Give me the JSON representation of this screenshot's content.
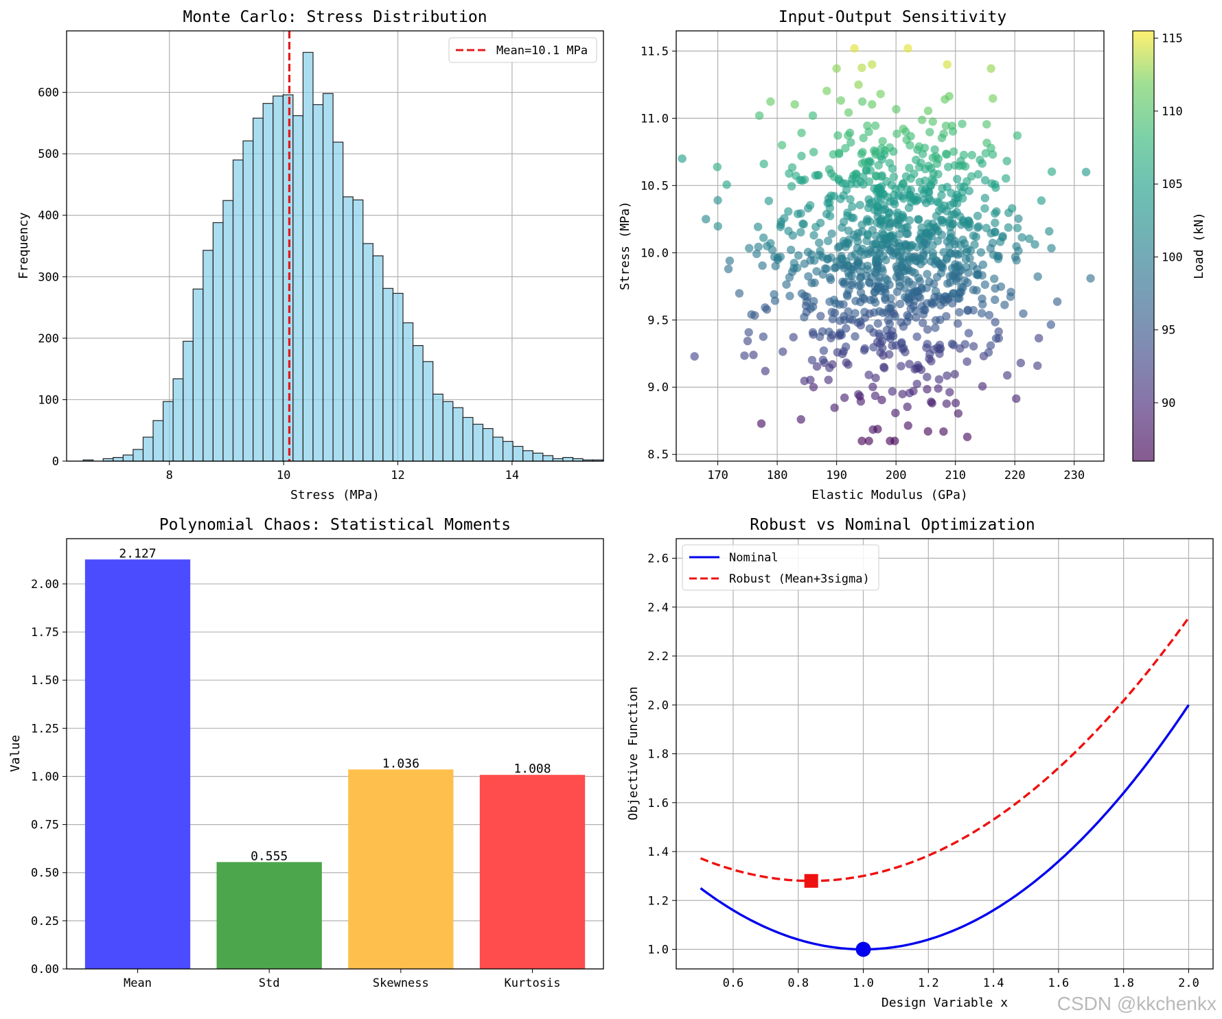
{
  "watermark": "CSDN @kkchenkx",
  "chart_data": [
    {
      "type": "bar",
      "subtype": "histogram",
      "title": "Monte Carlo: Stress Distribution",
      "xlabel": "Stress (MPa)",
      "ylabel": "Frequency",
      "xlim": [
        6.2,
        15.6
      ],
      "ylim": [
        0,
        700
      ],
      "xticks": [
        8,
        10,
        12,
        14
      ],
      "yticks": [
        0,
        100,
        200,
        300,
        400,
        500,
        600
      ],
      "grid": true,
      "bin_start": 6.49,
      "bin_width": 0.175,
      "frequencies": [
        2,
        0,
        4,
        6,
        10,
        19,
        39,
        66,
        97,
        134,
        195,
        280,
        343,
        388,
        424,
        490,
        521,
        558,
        582,
        594,
        596,
        562,
        665,
        580,
        598,
        519,
        430,
        425,
        354,
        334,
        281,
        273,
        225,
        188,
        162,
        109,
        97,
        87,
        71,
        60,
        53,
        39,
        32,
        24,
        17,
        13,
        9,
        4,
        6,
        4,
        2,
        2
      ],
      "mean_line": {
        "value": 10.1,
        "label": "Mean=10.1 MPa",
        "color": "#e31a1c"
      },
      "bar_color": "#87ceeb",
      "legend_position": "top-right"
    },
    {
      "type": "scatter",
      "title": "Input-Output Sensitivity",
      "xlabel": "Elastic Modulus (GPa)",
      "ylabel": "Stress (MPa)",
      "xlim": [
        163,
        235
      ],
      "ylim": [
        8.45,
        11.65
      ],
      "xticks": [
        170,
        180,
        190,
        200,
        210,
        220,
        230
      ],
      "yticks": [
        8.5,
        9.0,
        9.5,
        10.0,
        10.5,
        11.0,
        11.5
      ],
      "colorbar": {
        "label": "Load (kN)",
        "min": 86,
        "max": 115.5,
        "ticks": [
          90,
          95,
          100,
          105,
          110,
          115
        ],
        "colormap": "viridis"
      },
      "point_count": 1000,
      "x_mean": 200,
      "x_std": 10,
      "y_mean": 10.0,
      "y_std": 0.5,
      "grid": true,
      "sample_points": [
        [
          193,
          11.52,
          114.7
        ],
        [
          202,
          11.52,
          114.8
        ],
        [
          216,
          11.37,
          112.8
        ],
        [
          190,
          11.37,
          112.5
        ],
        [
          164,
          10.7,
          104.6
        ],
        [
          232,
          10.6,
          103.8
        ],
        [
          184,
          8.76,
          87.9
        ],
        [
          199,
          8.6,
          86.3
        ],
        [
          212,
          8.63,
          86.7
        ],
        [
          208,
          8.67,
          86.9
        ],
        [
          177,
          11.02,
          108.8
        ],
        [
          186,
          11.02,
          108.4
        ],
        [
          168,
          10.25,
          101.2
        ],
        [
          170,
          10.39,
          102.6
        ],
        [
          172,
          9.94,
          98.8
        ],
        [
          176,
          9.24,
          92.1
        ],
        [
          178,
          9.12,
          91.6
        ],
        [
          221,
          9.18,
          91.9
        ]
      ]
    },
    {
      "type": "bar",
      "title": "Polynomial Chaos: Statistical Moments",
      "xlabel": "",
      "ylabel": "Value",
      "ylim": [
        0,
        2.235
      ],
      "yticks": [
        "0.00",
        "0.25",
        "0.50",
        "0.75",
        "1.00",
        "1.25",
        "1.50",
        "1.75",
        "2.00"
      ],
      "categories": [
        "Mean",
        "Std",
        "Skewness",
        "Kurtosis"
      ],
      "values": [
        2.127,
        0.555,
        1.036,
        1.008
      ],
      "value_labels": [
        "2.127",
        "0.555",
        "1.036",
        "1.008"
      ],
      "colors": [
        "#4c4cff",
        "#4ca64c",
        "#ffbf4c",
        "#ff4c4c"
      ],
      "grid": "y"
    },
    {
      "type": "line",
      "title": "Robust vs Nominal Optimization",
      "xlabel": "Design Variable x",
      "ylabel": "Objective Function",
      "xlim": [
        0.425,
        2.075
      ],
      "ylim": [
        0.92,
        2.68
      ],
      "xticks": [
        "0.6",
        "0.8",
        "1.0",
        "1.2",
        "1.4",
        "1.6",
        "1.8",
        "2.0"
      ],
      "yticks": [
        "1.0",
        "1.2",
        "1.4",
        "1.6",
        "1.8",
        "2.0",
        "2.2",
        "2.4",
        "2.6"
      ],
      "grid": true,
      "legend_position": "top-left",
      "series": [
        {
          "name": "Nominal",
          "color": "#0000ee",
          "dash": "solid",
          "formula": "(x-1)^2+1",
          "x": [
            0.5,
            0.6,
            0.7,
            0.8,
            0.9,
            1.0,
            1.1,
            1.2,
            1.3,
            1.4,
            1.5,
            1.6,
            1.7,
            1.8,
            1.9,
            2.0
          ],
          "y": [
            1.25,
            1.16,
            1.09,
            1.04,
            1.01,
            1.0,
            1.01,
            1.04,
            1.09,
            1.16,
            1.25,
            1.36,
            1.49,
            1.64,
            1.81,
            2.0
          ],
          "optimum": {
            "x": 1.0,
            "y": 1.0,
            "marker": "circle"
          }
        },
        {
          "name": "Robust (Mean+3sigma)",
          "color": "#ee1111",
          "dash": "dashed",
          "formula": "0.8*(x-0.84)^2+1.28",
          "x": [
            0.5,
            0.6,
            0.7,
            0.8,
            0.9,
            1.0,
            1.1,
            1.2,
            1.3,
            1.4,
            1.5,
            1.6,
            1.7,
            1.8,
            1.9,
            2.0
          ],
          "y": [
            1.4,
            1.34,
            1.3,
            1.28,
            1.28,
            1.3,
            1.33,
            1.38,
            1.45,
            1.53,
            1.63,
            1.74,
            1.87,
            2.02,
            2.18,
            2.36
          ],
          "optimum": {
            "x": 0.84,
            "y": 1.28,
            "marker": "square"
          }
        }
      ]
    }
  ]
}
